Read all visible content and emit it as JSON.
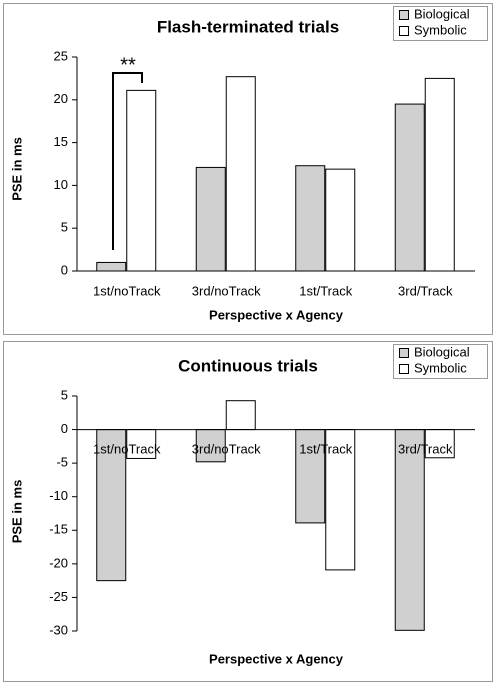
{
  "chart_data": [
    {
      "type": "bar",
      "title": "Flash-terminated trials",
      "x_label": "Perspective x Agency",
      "y_label": "PSE in ms",
      "categories": [
        "1st/noTrack",
        "3rd/noTrack",
        "1st/Track",
        "3rd/Track"
      ],
      "series": [
        {
          "name": "Biological",
          "color": "#d0d0d0",
          "values": [
            1.0,
            12.1,
            12.3,
            19.5
          ]
        },
        {
          "name": "Symbolic",
          "color": "#ffffff",
          "values": [
            21.1,
            22.7,
            11.9,
            22.5
          ]
        }
      ],
      "ylim": [
        0,
        25
      ],
      "yticks": [
        0,
        5,
        10,
        15,
        20,
        25
      ],
      "legend": "top-right",
      "annotation": "**"
    },
    {
      "type": "bar",
      "title": "Continuous trials",
      "x_label": "Perspective x Agency",
      "y_label": "PSE in ms",
      "categories": [
        "1st/noTrack",
        "3rd/noTrack",
        "1st/Track",
        "3rd/Track"
      ],
      "series": [
        {
          "name": "Biological",
          "color": "#d0d0d0",
          "values": [
            -22.5,
            -4.8,
            -13.9,
            -29.9
          ]
        },
        {
          "name": "Symbolic",
          "color": "#ffffff",
          "values": [
            -4.3,
            4.3,
            -20.9,
            -4.2
          ]
        }
      ],
      "ylim": [
        -30,
        5
      ],
      "yticks": [
        -30,
        -25,
        -20,
        -15,
        -10,
        -5,
        0,
        5
      ],
      "legend": "top-right"
    }
  ]
}
